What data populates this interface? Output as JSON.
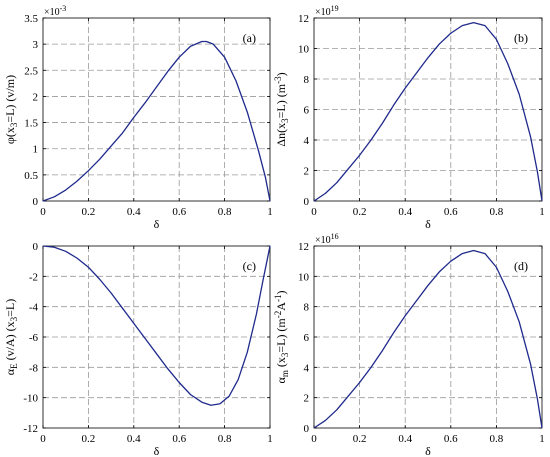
{
  "figure": {
    "background": "#ffffff",
    "line_color": "#1f2a8c",
    "grid_color": "#9a9a9a"
  },
  "chart_data": [
    {
      "type": "line",
      "panel_label": "(a)",
      "xlabel": "δ",
      "ylabel": "φ(x₃=L) (v/m)",
      "ylabel_parts": [
        "φ(x",
        "3",
        "=L) (v/m)"
      ],
      "multiplier": {
        "base": "×10",
        "exp": "-3"
      },
      "xlim": [
        0,
        1
      ],
      "ylim": [
        0,
        3.5
      ],
      "xticks": [
        0,
        0.2,
        0.4,
        0.6,
        0.8,
        1
      ],
      "xtick_labels": [
        "0",
        "0.2",
        "0.4",
        "0.6",
        "0.8",
        "1"
      ],
      "yticks": [
        0,
        0.5,
        1,
        1.5,
        2,
        2.5,
        3,
        3.5
      ],
      "ytick_labels": [
        "0",
        "0.5",
        "1",
        "1.5",
        "2",
        "2.5",
        "3",
        "3.5"
      ],
      "grid": true,
      "series": [
        {
          "x": [
            0,
            0.05,
            0.1,
            0.15,
            0.2,
            0.25,
            0.3,
            0.35,
            0.4,
            0.45,
            0.5,
            0.55,
            0.6,
            0.65,
            0.7,
            0.72,
            0.75,
            0.8,
            0.85,
            0.9,
            0.95,
            0.98,
            1
          ],
          "values": [
            0,
            0.08,
            0.21,
            0.38,
            0.58,
            0.8,
            1.05,
            1.3,
            1.6,
            1.88,
            2.18,
            2.48,
            2.75,
            2.96,
            3.05,
            3.05,
            3.0,
            2.75,
            2.3,
            1.7,
            0.95,
            0.45,
            0
          ]
        }
      ]
    },
    {
      "type": "line",
      "panel_label": "(b)",
      "xlabel": "δ",
      "ylabel": "Δn(x₃=L) (m⁻³)",
      "ylabel_parts": [
        "Δn(x",
        "3",
        "=L) (m",
        "-3",
        ")"
      ],
      "multiplier": {
        "base": "×10",
        "exp": "19"
      },
      "xlim": [
        0,
        1
      ],
      "ylim": [
        0,
        12
      ],
      "xticks": [
        0,
        0.2,
        0.4,
        0.6,
        0.8,
        1
      ],
      "xtick_labels": [
        "0",
        "0.2",
        "0.4",
        "0.6",
        "0.8",
        "1"
      ],
      "yticks": [
        0,
        2,
        4,
        6,
        8,
        10,
        12
      ],
      "ytick_labels": [
        "0",
        "2",
        "4",
        "6",
        "8",
        "10",
        "12"
      ],
      "grid": true,
      "series": [
        {
          "x": [
            0,
            0.05,
            0.1,
            0.15,
            0.2,
            0.25,
            0.3,
            0.35,
            0.4,
            0.45,
            0.5,
            0.55,
            0.6,
            0.65,
            0.7,
            0.75,
            0.8,
            0.85,
            0.9,
            0.95,
            0.98,
            1
          ],
          "values": [
            0,
            0.5,
            1.2,
            2.1,
            3.0,
            4.0,
            5.1,
            6.3,
            7.4,
            8.4,
            9.4,
            10.3,
            11.0,
            11.5,
            11.7,
            11.5,
            10.6,
            9.0,
            7.0,
            4.2,
            1.9,
            0
          ]
        }
      ]
    },
    {
      "type": "line",
      "panel_label": "(c)",
      "xlabel": "δ",
      "ylabel": "α_E (v/A) (x₃=L)",
      "ylabel_parts": [
        "α",
        "E",
        " (v/A) (x",
        "3",
        "=L)"
      ],
      "xlim": [
        0,
        1
      ],
      "ylim": [
        -12,
        0
      ],
      "xticks": [
        0,
        0.2,
        0.4,
        0.6,
        0.8,
        1
      ],
      "xtick_labels": [
        "0",
        "0.2",
        "0.4",
        "0.6",
        "0.8",
        "1"
      ],
      "yticks": [
        -12,
        -10,
        -8,
        -6,
        -4,
        -2,
        0
      ],
      "ytick_labels": [
        "-12",
        "-10",
        "-8",
        "-6",
        "-4",
        "-2",
        "0"
      ],
      "grid": true,
      "series": [
        {
          "x": [
            0,
            0.05,
            0.1,
            0.15,
            0.2,
            0.25,
            0.3,
            0.35,
            0.4,
            0.45,
            0.5,
            0.55,
            0.6,
            0.65,
            0.7,
            0.74,
            0.78,
            0.82,
            0.86,
            0.9,
            0.94,
            0.97,
            1
          ],
          "values": [
            0,
            -0.08,
            -0.35,
            -0.8,
            -1.4,
            -2.2,
            -3.1,
            -4.1,
            -5.1,
            -6.1,
            -7.1,
            -8.1,
            -9.0,
            -9.8,
            -10.3,
            -10.5,
            -10.4,
            -9.9,
            -8.8,
            -7.0,
            -4.5,
            -2.2,
            0
          ]
        }
      ]
    },
    {
      "type": "line",
      "panel_label": "(d)",
      "xlabel": "δ",
      "ylabel": "α_m (x₃=L) (m⁻²A⁻¹)",
      "ylabel_parts": [
        "α",
        "m",
        " (x",
        "3",
        "=L) (m",
        "-2",
        "A",
        "-1",
        ")"
      ],
      "multiplier": {
        "base": "×10",
        "exp": "16"
      },
      "xlim": [
        0,
        1
      ],
      "ylim": [
        0,
        12
      ],
      "xticks": [
        0,
        0.2,
        0.4,
        0.6,
        0.8,
        1
      ],
      "xtick_labels": [
        "0",
        "0.2",
        "0.4",
        "0.6",
        "0.8",
        "1"
      ],
      "yticks": [
        0,
        2,
        4,
        6,
        8,
        10,
        12
      ],
      "ytick_labels": [
        "0",
        "2",
        "4",
        "6",
        "8",
        "10",
        "12"
      ],
      "grid": true,
      "series": [
        {
          "x": [
            0,
            0.05,
            0.1,
            0.15,
            0.2,
            0.25,
            0.3,
            0.35,
            0.4,
            0.45,
            0.5,
            0.55,
            0.6,
            0.65,
            0.7,
            0.75,
            0.8,
            0.85,
            0.9,
            0.95,
            0.98,
            1
          ],
          "values": [
            0,
            0.5,
            1.2,
            2.1,
            3.0,
            4.0,
            5.1,
            6.3,
            7.4,
            8.4,
            9.4,
            10.3,
            11.0,
            11.5,
            11.7,
            11.5,
            10.6,
            9.0,
            7.0,
            4.2,
            1.9,
            0
          ]
        }
      ]
    }
  ]
}
